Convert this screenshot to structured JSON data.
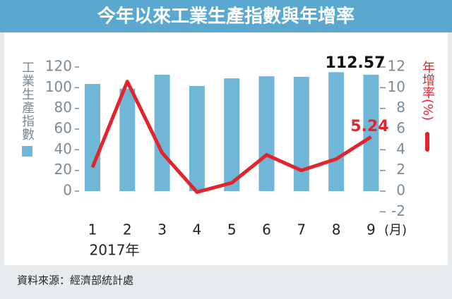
{
  "chart_data": {
    "type": "bar_line",
    "title": "今年以來工業生產指數與年增率",
    "categories": [
      "1",
      "2",
      "3",
      "4",
      "5",
      "6",
      "7",
      "8",
      "9"
    ],
    "x_unit": "(月)",
    "x_label": "2017年",
    "y_label": "工業生產指數",
    "y2_label": "年增率(%)",
    "series": [
      {
        "name": "工業生產指數",
        "color": "#6fb6d7",
        "values": [
          103.6,
          99,
          112.5,
          101.6,
          109,
          111,
          110.5,
          115,
          112.57
        ]
      },
      {
        "name": "年增率",
        "color": "#e2252c",
        "axis": "y2",
        "values": [
          2.3,
          10.6,
          3.7,
          -0.1,
          0.8,
          3.5,
          2.0,
          3.1,
          5.24
        ]
      }
    ],
    "ylim": [
      0,
      120
    ],
    "yticks": [
      0,
      20,
      40,
      60,
      80,
      100,
      120
    ],
    "y2lim": [
      -2,
      12
    ],
    "y2ticks": [
      -2,
      0,
      2,
      4,
      6,
      8,
      10,
      12
    ],
    "source": "資料來源：經濟部統計處"
  }
}
